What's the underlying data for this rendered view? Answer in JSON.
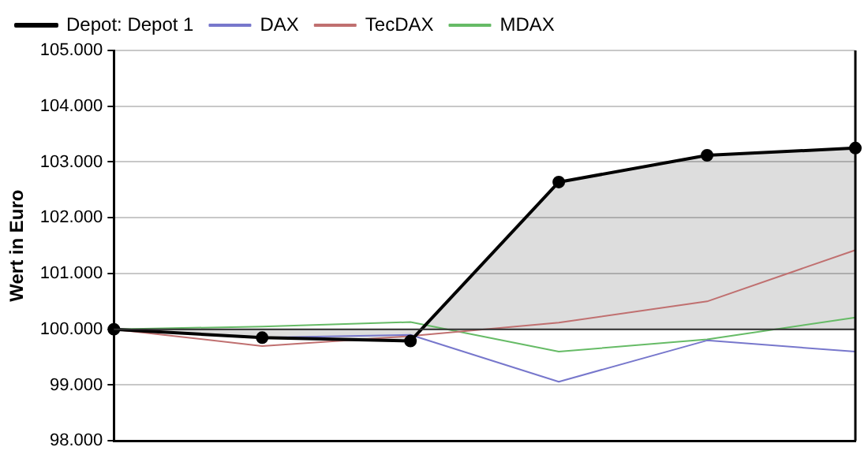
{
  "chart_data": {
    "type": "line",
    "ylabel": "Wert in Euro",
    "categories": [
      null,
      null,
      null,
      null,
      null,
      null
    ],
    "series": [
      {
        "name": "Depot: Depot 1",
        "type": "area",
        "color": "#000000",
        "marker": "circle",
        "values": [
          100000,
          99850,
          99790,
          102640,
          103120,
          103250
        ]
      },
      {
        "name": "DAX",
        "color": "#7777cc",
        "marker": "none",
        "values": [
          100000,
          99850,
          99900,
          99060,
          99800,
          99600
        ]
      },
      {
        "name": "TecDAX",
        "color": "#c07070",
        "marker": "none",
        "values": [
          100000,
          99700,
          99880,
          100120,
          100500,
          101420
        ]
      },
      {
        "name": "MDAX",
        "color": "#66bb66",
        "marker": "none",
        "values": [
          100000,
          100050,
          100130,
          99600,
          99820,
          100210
        ]
      }
    ],
    "ylim": [
      98000,
      105000
    ],
    "yticks": [
      {
        "value": 98000,
        "label": "98.000"
      },
      {
        "value": 99000,
        "label": "99.000"
      },
      {
        "value": 100000,
        "label": "100.000"
      },
      {
        "value": 101000,
        "label": "101.000"
      },
      {
        "value": 102000,
        "label": "102.000"
      },
      {
        "value": 103000,
        "label": "103.000"
      },
      {
        "value": 104000,
        "label": "104.000"
      },
      {
        "value": 105000,
        "label": "105.000"
      }
    ],
    "ref_lines": [
      {
        "axis": "y",
        "value": 100000,
        "color": "#303030"
      }
    ],
    "grid": "y",
    "legend": "top left"
  }
}
